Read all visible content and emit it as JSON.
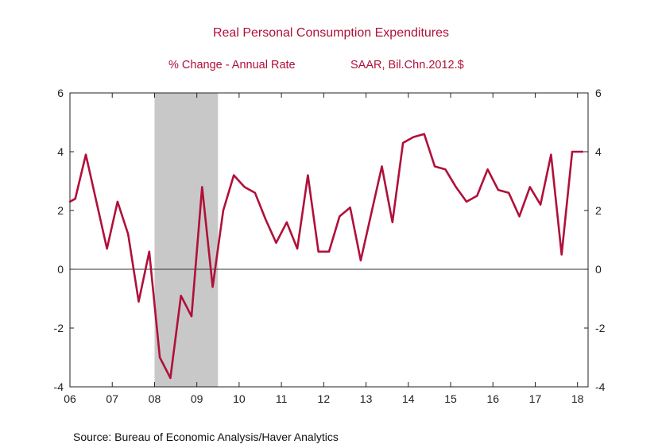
{
  "chart_data": {
    "type": "line",
    "title": "Real Personal Consumption Expenditures",
    "subtitle_left": "% Change - Annual Rate",
    "subtitle_right": "SAAR, Bil.Chn.2012.$",
    "xlabel": "",
    "ylabel": "",
    "xlim": [
      2006.0,
      2018.25
    ],
    "ylim": [
      -4,
      6
    ],
    "y_ticks": [
      6,
      4,
      2,
      0,
      -2,
      -4
    ],
    "x_ticks": [
      "06",
      "07",
      "08",
      "09",
      "10",
      "11",
      "12",
      "13",
      "14",
      "15",
      "16",
      "17",
      "18"
    ],
    "recession": [
      2008.0,
      2009.5
    ],
    "series": [
      {
        "color": "#b0103a",
        "x": [
          2006.0,
          2006.125,
          2006.375,
          2006.625,
          2006.875,
          2007.125,
          2007.375,
          2007.625,
          2007.875,
          2008.125,
          2008.375,
          2008.625,
          2008.875,
          2009.125,
          2009.375,
          2009.625,
          2009.875,
          2010.125,
          2010.375,
          2010.625,
          2010.875,
          2011.125,
          2011.375,
          2011.625,
          2011.875,
          2012.125,
          2012.375,
          2012.625,
          2012.875,
          2013.125,
          2013.375,
          2013.625,
          2013.875,
          2014.125,
          2014.375,
          2014.625,
          2014.875,
          2015.125,
          2015.375,
          2015.625,
          2015.875,
          2016.125,
          2016.375,
          2016.625,
          2016.875,
          2017.125,
          2017.375,
          2017.625,
          2017.875,
          2018.125
        ],
        "values": [
          2.3,
          2.4,
          3.9,
          2.3,
          0.7,
          2.3,
          1.2,
          -1.1,
          0.6,
          -3.0,
          -3.7,
          -0.9,
          -1.6,
          2.8,
          -0.6,
          2.0,
          3.2,
          2.8,
          2.6,
          1.7,
          0.9,
          1.6,
          0.7,
          3.2,
          0.6,
          0.6,
          1.8,
          2.1,
          0.3,
          1.9,
          3.5,
          1.6,
          4.3,
          4.5,
          4.6,
          3.5,
          3.4,
          2.8,
          2.3,
          2.5,
          3.4,
          2.7,
          2.6,
          1.8,
          2.8,
          2.2,
          3.9,
          0.5,
          4.0,
          4.0
        ]
      }
    ]
  },
  "source": "Source:  Bureau of Economic Analysis/Haver Analytics"
}
